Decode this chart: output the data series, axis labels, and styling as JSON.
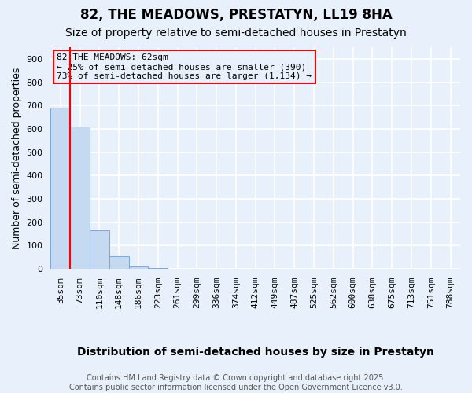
{
  "title1": "82, THE MEADOWS, PRESTATYN, LL19 8HA",
  "title2": "Size of property relative to semi-detached houses in Prestatyn",
  "xlabel": "Distribution of semi-detached houses by size in Prestatyn",
  "ylabel": "Number of semi-detached properties",
  "bar_labels": [
    "35sqm",
    "73sqm",
    "110sqm",
    "148sqm",
    "186sqm",
    "223sqm",
    "261sqm",
    "299sqm",
    "336sqm",
    "374sqm",
    "412sqm",
    "449sqm",
    "487sqm",
    "525sqm",
    "562sqm",
    "600sqm",
    "638sqm",
    "675sqm",
    "713sqm",
    "751sqm",
    "788sqm"
  ],
  "bar_values": [
    690,
    610,
    165,
    55,
    12,
    5,
    0,
    0,
    0,
    0,
    0,
    0,
    0,
    0,
    0,
    0,
    0,
    0,
    0,
    0,
    0
  ],
  "bar_color": "#c5d9f1",
  "bar_edge_color": "#7da6d6",
  "background_color": "#e8f1fb",
  "grid_color": "#ffffff",
  "ylim": [
    0,
    950
  ],
  "yticks": [
    0,
    100,
    200,
    300,
    400,
    500,
    600,
    700,
    800,
    900
  ],
  "red_line_x": 0.5,
  "annotation_title": "82 THE MEADOWS: 62sqm",
  "annotation_line1": "← 25% of semi-detached houses are smaller (390)",
  "annotation_line2": "73% of semi-detached houses are larger (1,134) →",
  "footer_line1": "Contains HM Land Registry data © Crown copyright and database right 2025.",
  "footer_line2": "Contains public sector information licensed under the Open Government Licence v3.0.",
  "title1_fontsize": 12,
  "title2_fontsize": 10,
  "xlabel_fontsize": 10,
  "ylabel_fontsize": 9,
  "tick_fontsize": 8,
  "annotation_fontsize": 8,
  "footer_fontsize": 7
}
